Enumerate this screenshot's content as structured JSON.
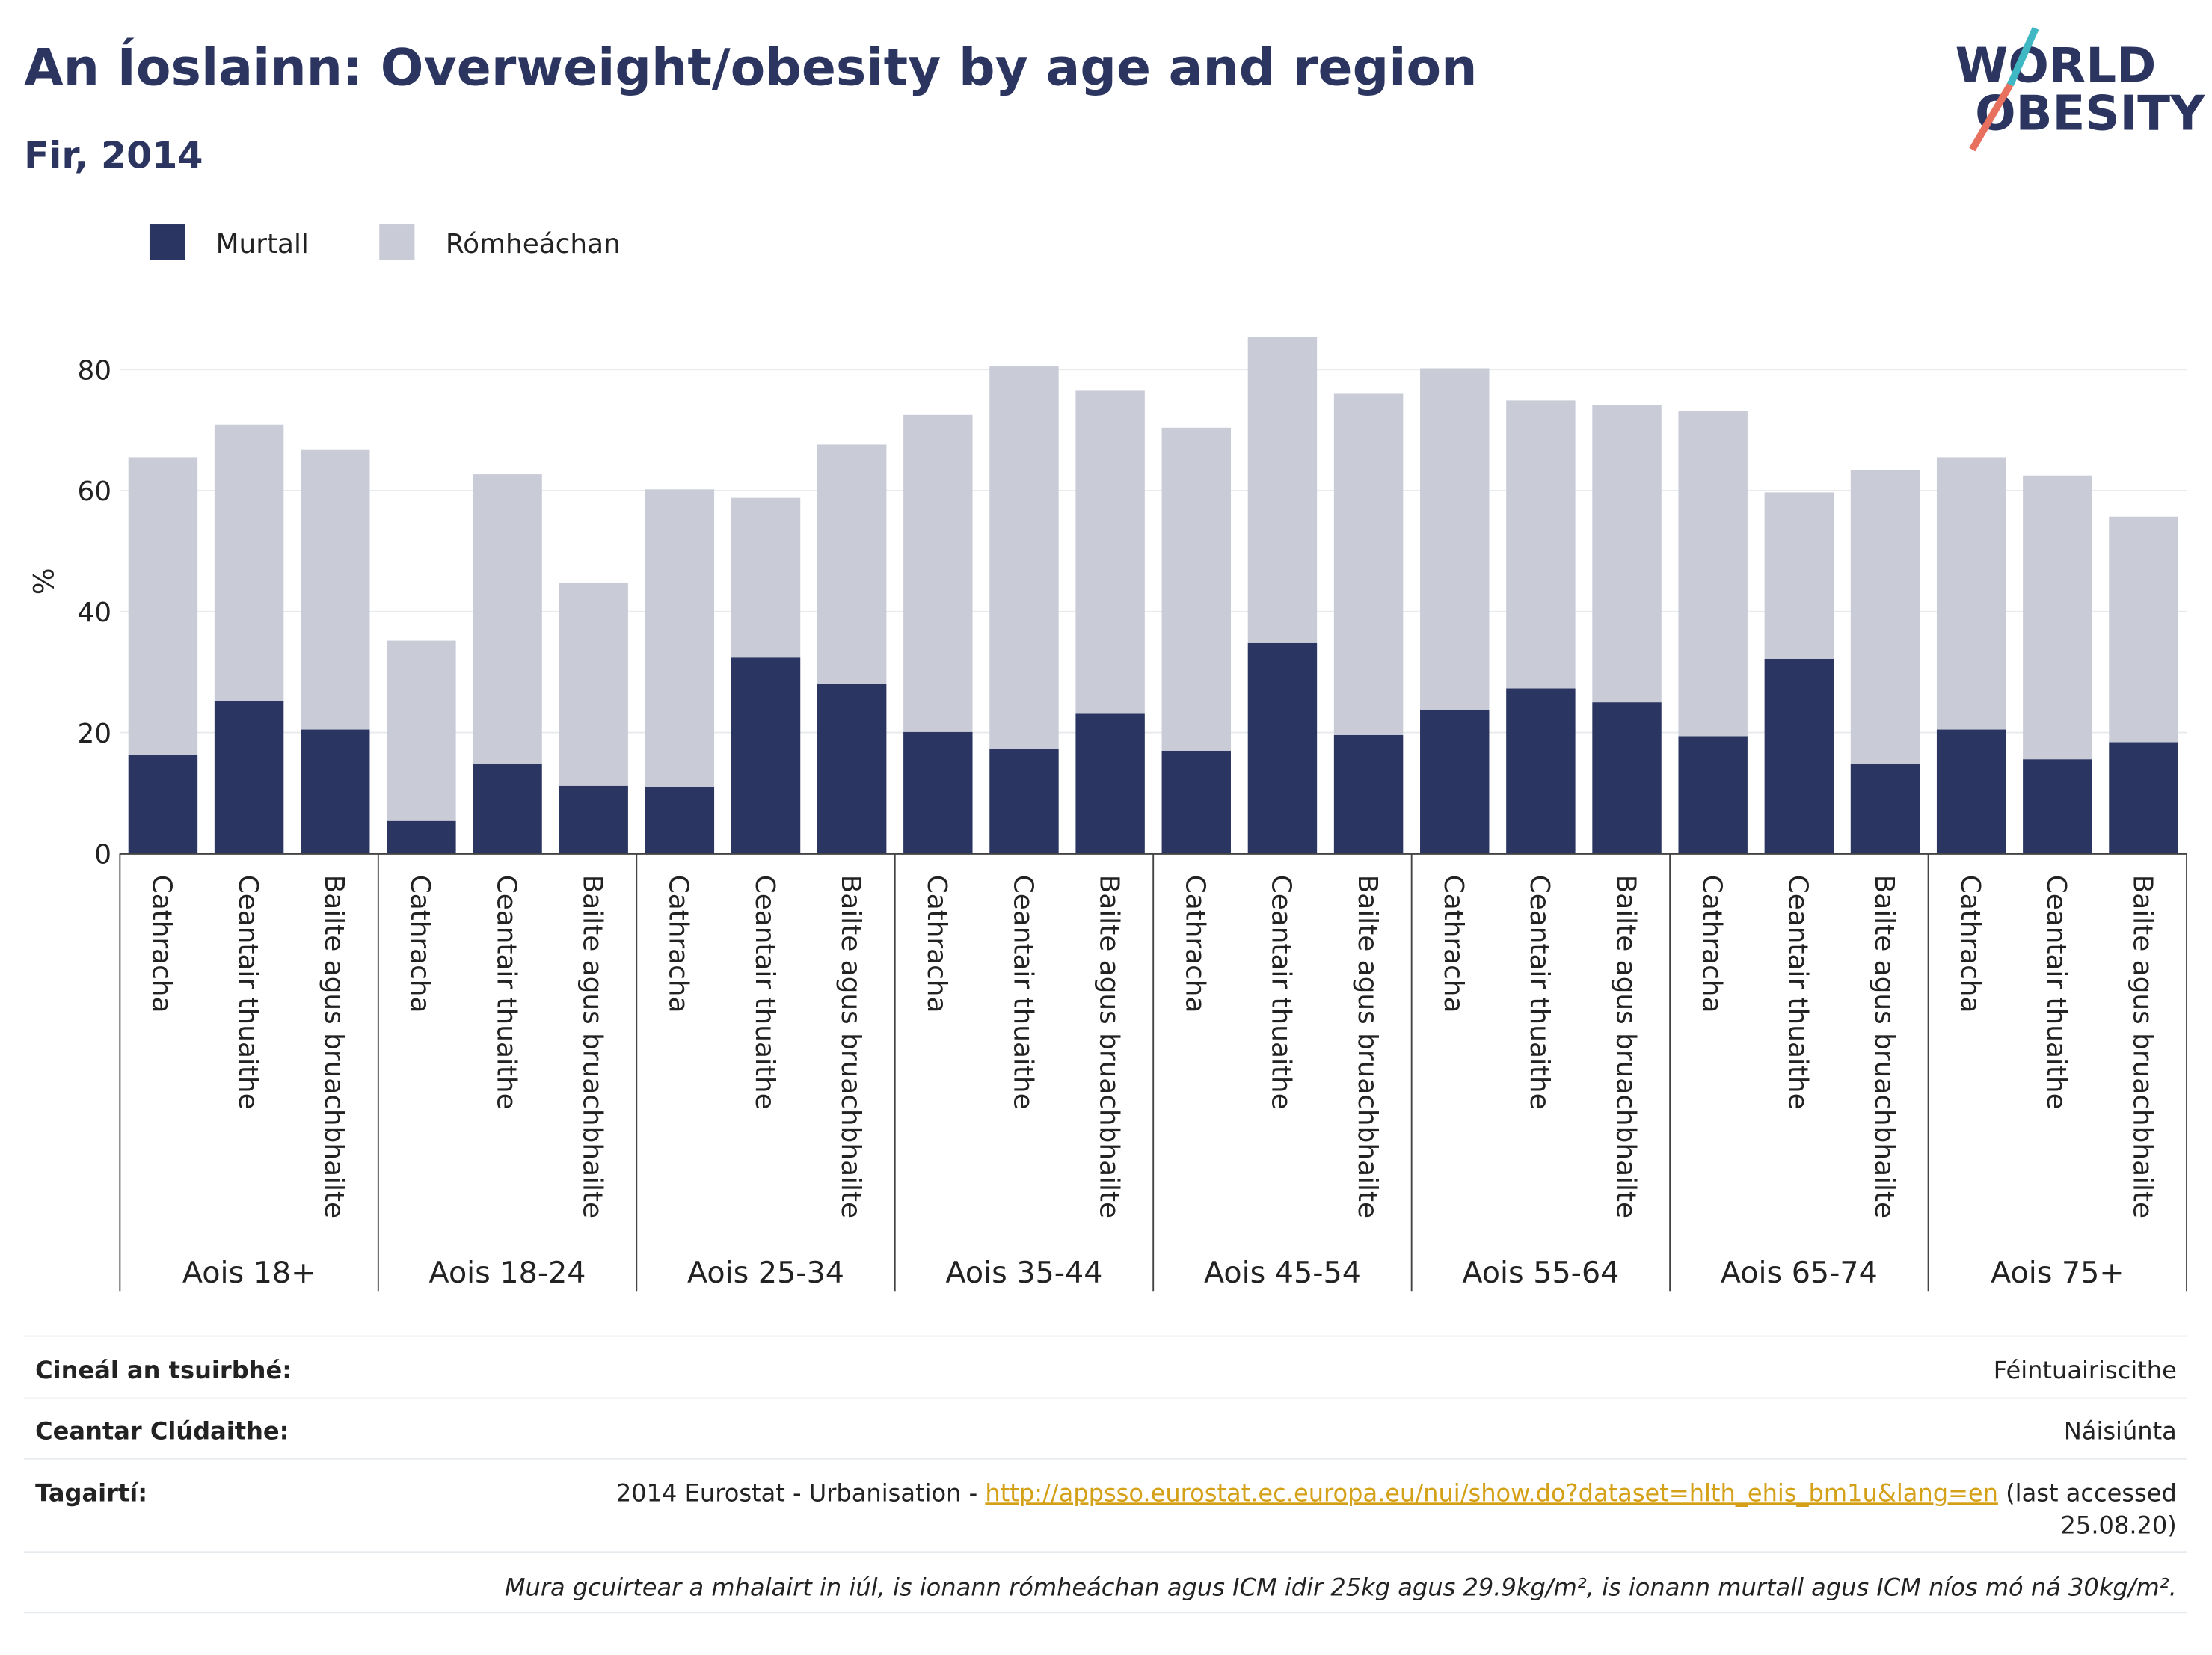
{
  "chart_data": {
    "type": "stacked_bar",
    "title": "An Íoslainn: Overweight/obesity by age and region",
    "subtitle": "Fir, 2014",
    "y_label": "%",
    "groups": [
      {
        "label": "Aois 18+",
        "categories": [
          "Cathracha",
          "Ceantair thuaithe",
          "Bailte agus bruachbhailte"
        ]
      },
      {
        "label": "Aois 18-24",
        "categories": [
          "Cathracha",
          "Ceantair thuaithe",
          "Bailte agus bruachbhailte"
        ]
      },
      {
        "label": "Aois 25-34",
        "categories": [
          "Cathracha",
          "Ceantair thuaithe",
          "Bailte agus bruachbhailte"
        ]
      },
      {
        "label": "Aois 35-44",
        "categories": [
          "Cathracha",
          "Ceantair thuaithe",
          "Bailte agus bruachbhailte"
        ]
      },
      {
        "label": "Aois 45-54",
        "categories": [
          "Cathracha",
          "Ceantair thuaithe",
          "Bailte agus bruachbhailte"
        ]
      },
      {
        "label": "Aois 55-64",
        "categories": [
          "Cathracha",
          "Ceantair thuaithe",
          "Bailte agus bruachbhailte"
        ]
      },
      {
        "label": "Aois 65-74",
        "categories": [
          "Cathracha",
          "Ceantair thuaithe",
          "Bailte agus bruachbhailte"
        ]
      },
      {
        "label": "Aois 75+",
        "categories": [
          "Cathracha",
          "Ceantair thuaithe",
          "Bailte agus bruachbhailte"
        ]
      }
    ],
    "series": [
      {
        "name": "Murtall",
        "color": "#2a3562",
        "values": [
          16.3,
          25.2,
          20.5,
          5.4,
          14.9,
          11.2,
          11.0,
          32.4,
          28.0,
          20.1,
          17.3,
          23.1,
          17.0,
          34.8,
          19.6,
          23.8,
          27.3,
          25.0,
          19.4,
          32.2,
          14.9,
          20.5,
          15.6,
          18.4
        ]
      },
      {
        "name": "Rómheáchan",
        "color": "#c9cbd7",
        "values": [
          49.2,
          45.7,
          46.2,
          29.8,
          47.8,
          33.6,
          49.2,
          26.4,
          39.6,
          52.4,
          63.2,
          53.4,
          53.4,
          50.6,
          56.4,
          56.4,
          47.6,
          49.2,
          53.8,
          27.5,
          48.5,
          45.0,
          46.9,
          37.3
        ]
      }
    ],
    "ylim": [
      0,
      90
    ],
    "yticks": [
      0,
      20,
      40,
      60,
      80
    ],
    "grid": true,
    "legend": "top-left"
  },
  "logo": {
    "line1": "WORLD",
    "line2": "OBESITY"
  },
  "footer": {
    "rows": [
      {
        "label": "Cineál an tsuirbhé:",
        "value": "Féintuairiscithe"
      },
      {
        "label": "Ceantar Clúdaithe:",
        "value": "Náisiúnta"
      }
    ],
    "reference": {
      "label": "Tagairtí:",
      "text": "2014 Eurostat - Urbanisation - ",
      "link": "http://appsso.eurostat.ec.europa.eu/nui/show.do?dataset=hlth_ehis_bm1u&lang=en",
      "tail": " (last accessed",
      "tail2": "25.08.20)"
    },
    "note": "Mura gcuirtear a mhalairt in iúl, is ionann rómheáchan agus ICM idir 25kg agus 29.9kg/m², is ionann murtall agus ICM níos mó ná 30kg/m²."
  }
}
